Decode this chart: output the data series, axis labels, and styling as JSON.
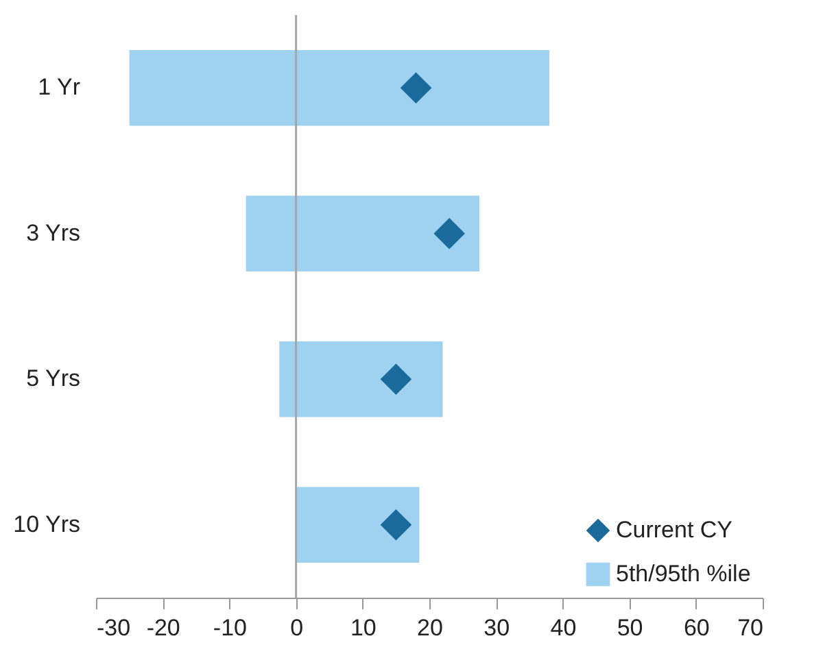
{
  "chart_data": {
    "type": "bar",
    "orientation": "horizontal",
    "categories": [
      "1 Yr",
      "3 Yrs",
      "5 Yrs",
      "10 Yrs"
    ],
    "series": [
      {
        "name": "Current CY",
        "type": "scatter",
        "marker": "diamond",
        "color": "#1b6a9c",
        "values": [
          18,
          23,
          15,
          15
        ]
      },
      {
        "name": "5th/95th %ile",
        "color": "#9fd1f0",
        "base": [
          -25,
          -7.5,
          -2.5,
          0
        ],
        "values": [
          63,
          35,
          24.5,
          18.5
        ]
      }
    ],
    "xlim": [
      -30,
      70
    ],
    "xticks": [
      -30,
      -20,
      -10,
      0,
      10,
      20,
      30,
      40,
      50,
      60,
      70
    ],
    "ref_lines": [
      {
        "axis": "x",
        "value": 0,
        "color": "#a6a6a6"
      }
    ],
    "legend": "bottom right",
    "grid": false
  }
}
